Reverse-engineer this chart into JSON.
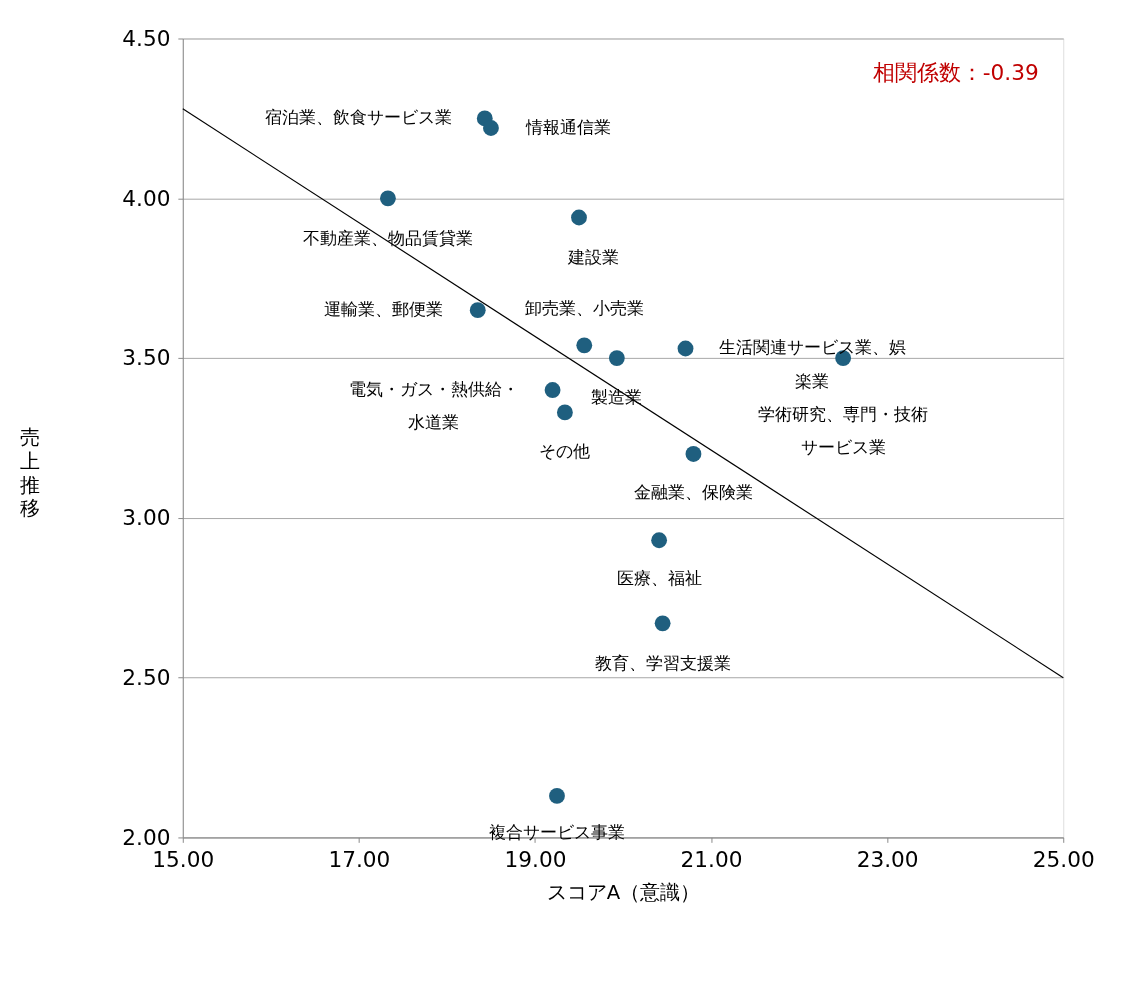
{
  "chart_data": {
    "type": "scatter",
    "xlabel": "スコアA（意識）",
    "ylabel": "売上推移",
    "xlim": [
      15,
      25
    ],
    "ylim": [
      2,
      4.5
    ],
    "xticks": [
      {
        "value": 15,
        "label": "15.00"
      },
      {
        "value": 17,
        "label": "17.00"
      },
      {
        "value": 19,
        "label": "19.00"
      },
      {
        "value": 21,
        "label": "21.00"
      },
      {
        "value": 23,
        "label": "23.00"
      },
      {
        "value": 25,
        "label": "25.00"
      }
    ],
    "yticks": [
      {
        "value": 2,
        "label": "2.00"
      },
      {
        "value": 2.5,
        "label": "2.50"
      },
      {
        "value": 3,
        "label": "3.00"
      },
      {
        "value": 3.5,
        "label": "3.50"
      },
      {
        "value": 4,
        "label": "4.00"
      },
      {
        "value": 4.5,
        "label": "4.50"
      }
    ],
    "grid": "y",
    "series": [
      {
        "color": "#1f5f7f",
        "marker": "circle",
        "x": [
          18.43,
          18.5,
          17.33,
          19.5,
          18.35,
          19.56,
          19.93,
          20.71,
          22.5,
          19.2,
          19.34,
          20.8,
          20.41,
          20.45,
          19.25
        ],
        "values": [
          4.25,
          4.22,
          4.0,
          3.94,
          3.65,
          3.54,
          3.5,
          3.53,
          3.5,
          3.4,
          3.33,
          3.2,
          2.93,
          2.67,
          2.13
        ]
      },
      {
        "type": "line",
        "color": "#000000",
        "x": [
          15,
          25
        ],
        "values": [
          4.28,
          2.5
        ]
      }
    ],
    "annotations": [
      {
        "text": "宿泊業、飲食サービス業",
        "x": 18.43,
        "y": 4.25
      },
      {
        "text": "情報通信業",
        "x": 18.5,
        "y": 4.22
      },
      {
        "text": "不動産業、物品賃貸業",
        "x": 17.33,
        "y": 4.0
      },
      {
        "text": "建設業",
        "x": 19.5,
        "y": 3.94
      },
      {
        "text": "運輸業、郵便業",
        "x": 18.35,
        "y": 3.65
      },
      {
        "text": "卸売業、小売業",
        "x": 19.56,
        "y": 3.54
      },
      {
        "text": "製造業",
        "x": 19.93,
        "y": 3.5
      },
      {
        "text": "生活関連サービス業、娯楽業",
        "x": 20.71,
        "y": 3.53
      },
      {
        "text": "学術研究、専門・技術サービス業",
        "x": 22.5,
        "y": 3.5
      },
      {
        "text": "電気・ガス・熱供給・水道業",
        "x": 19.2,
        "y": 3.4
      },
      {
        "text": "その他",
        "x": 19.34,
        "y": 3.33
      },
      {
        "text": "金融業、保険業",
        "x": 20.8,
        "y": 3.2
      },
      {
        "text": "医療、福祉",
        "x": 20.41,
        "y": 2.93
      },
      {
        "text": "教育、学習支援業",
        "x": 20.45,
        "y": 2.67
      },
      {
        "text": "複合サービス事業",
        "x": 19.25,
        "y": 2.13
      },
      "相関係数：-0.39"
    ]
  }
}
